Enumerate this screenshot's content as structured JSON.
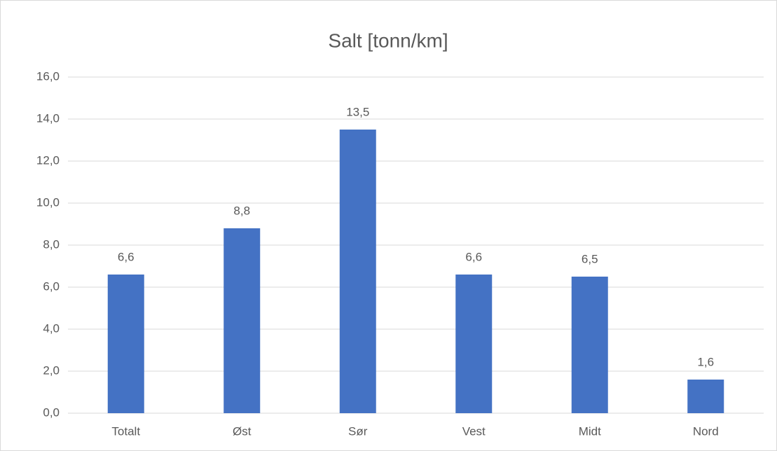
{
  "chart_data": {
    "type": "bar",
    "title": "Salt [tonn/km]",
    "categories": [
      "Totalt",
      "Øst",
      "Sør",
      "Vest",
      "Midt",
      "Nord"
    ],
    "values": [
      6.6,
      8.8,
      13.5,
      6.6,
      6.5,
      1.6
    ],
    "value_labels": [
      "6,6",
      "8,8",
      "13,5",
      "6,6",
      "6,5",
      "1,6"
    ],
    "color": "#4472c4",
    "ylim": [
      0,
      16
    ],
    "yticks": [
      {
        "value": 0,
        "label": "0,0"
      },
      {
        "value": 2,
        "label": "2,0"
      },
      {
        "value": 4,
        "label": "4,0"
      },
      {
        "value": 6,
        "label": "6,0"
      },
      {
        "value": 8,
        "label": "8,0"
      },
      {
        "value": 10,
        "label": "10,0"
      },
      {
        "value": 12,
        "label": "12,0"
      },
      {
        "value": 14,
        "label": "14,0"
      },
      {
        "value": 16,
        "label": "16,0"
      }
    ],
    "grid": true
  }
}
